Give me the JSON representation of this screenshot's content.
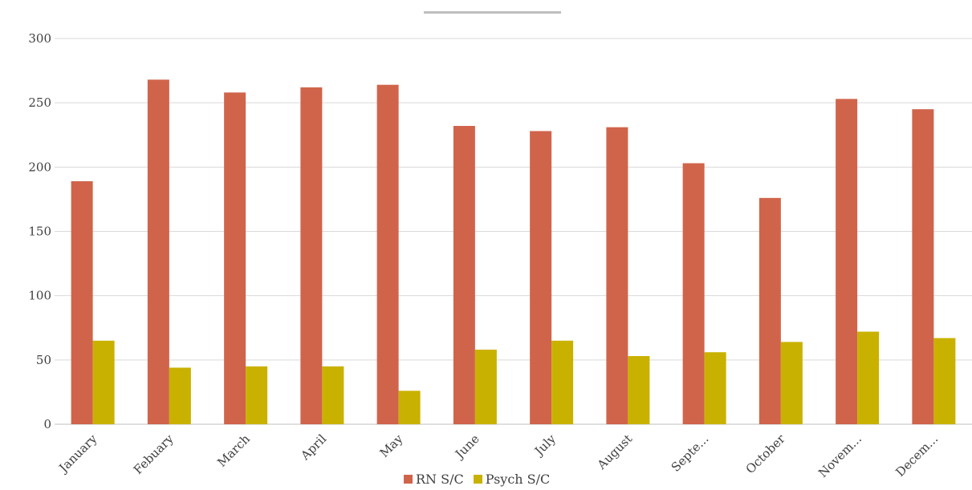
{
  "chart_data": {
    "type": "bar",
    "title": "",
    "xlabel": "",
    "ylabel": "",
    "ylim": [
      0,
      300
    ],
    "yticks": [
      0,
      50,
      100,
      150,
      200,
      250,
      300
    ],
    "grid": true,
    "legend_position": "bottom",
    "categories": [
      "January",
      "Febuary",
      "March",
      "April",
      "May",
      "June",
      "July",
      "August",
      "Septe...",
      "October",
      "Novem...",
      "Decem..."
    ],
    "series": [
      {
        "name": "RN S/C",
        "color": "#d0644a",
        "values": [
          189,
          268,
          258,
          262,
          264,
          232,
          228,
          231,
          203,
          176,
          253,
          245
        ]
      },
      {
        "name": "Psych S/C",
        "color": "#c9b100",
        "values": [
          65,
          44,
          45,
          45,
          26,
          58,
          65,
          53,
          56,
          64,
          72,
          67
        ]
      }
    ]
  }
}
